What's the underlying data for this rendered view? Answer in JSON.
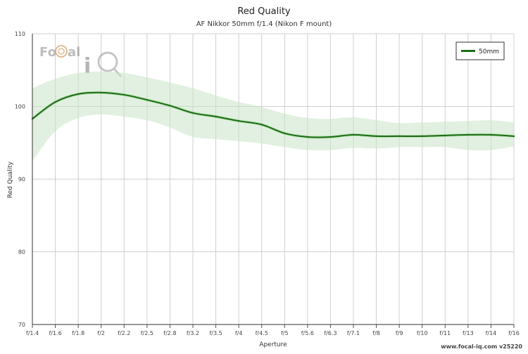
{
  "chart_data": {
    "type": "line",
    "title": "Red Quality",
    "subtitle": "AF Nikkor 50mm f/1.4 (Nikon F mount)",
    "xlabel": "Aperture",
    "ylabel": "Red Quality",
    "categories": [
      "f/1.4",
      "f/1.6",
      "f/1.8",
      "f/2",
      "f/2.2",
      "f/2.5",
      "f/2.8",
      "f/3.2",
      "f/3.5",
      "f/4",
      "f/4.5",
      "f/5",
      "f/5.6",
      "f/6.3",
      "f/7.1",
      "f/8",
      "f/9",
      "f/10",
      "f/11",
      "f/13",
      "f/14",
      "f/16"
    ],
    "ylim": [
      70,
      110
    ],
    "yticks": [
      70,
      80,
      90,
      100,
      110
    ],
    "grid": true,
    "legend_position": "top-right",
    "series": [
      {
        "name": "50mm",
        "color": "#1a6e12",
        "values": [
          98.3,
          100.6,
          101.7,
          101.9,
          101.6,
          100.9,
          100.1,
          99.1,
          98.6,
          98.0,
          97.5,
          96.3,
          95.8,
          95.8,
          96.1,
          95.9,
          95.9,
          95.9,
          96.0,
          96.1,
          96.1,
          95.9
        ],
        "band_upper": [
          102.5,
          103.8,
          104.6,
          104.8,
          104.6,
          104.0,
          103.3,
          102.5,
          101.5,
          100.6,
          99.9,
          99.0,
          98.4,
          98.3,
          98.5,
          98.1,
          97.7,
          97.8,
          97.9,
          98.0,
          98.1,
          97.8
        ],
        "band_lower": [
          92.5,
          96.6,
          98.4,
          98.9,
          98.6,
          98.1,
          97.1,
          95.8,
          95.5,
          95.2,
          94.9,
          94.4,
          94.0,
          94.0,
          94.3,
          94.2,
          94.4,
          94.4,
          94.4,
          94.0,
          94.0,
          94.5
        ]
      }
    ]
  },
  "branding": {
    "logo_text": "Focal iQ",
    "watermark": "www.focal-iq.com  v25220"
  },
  "colors": {
    "line": "#1a6e12",
    "band": "#c9e3c6",
    "grid": "#cfcfcf"
  }
}
